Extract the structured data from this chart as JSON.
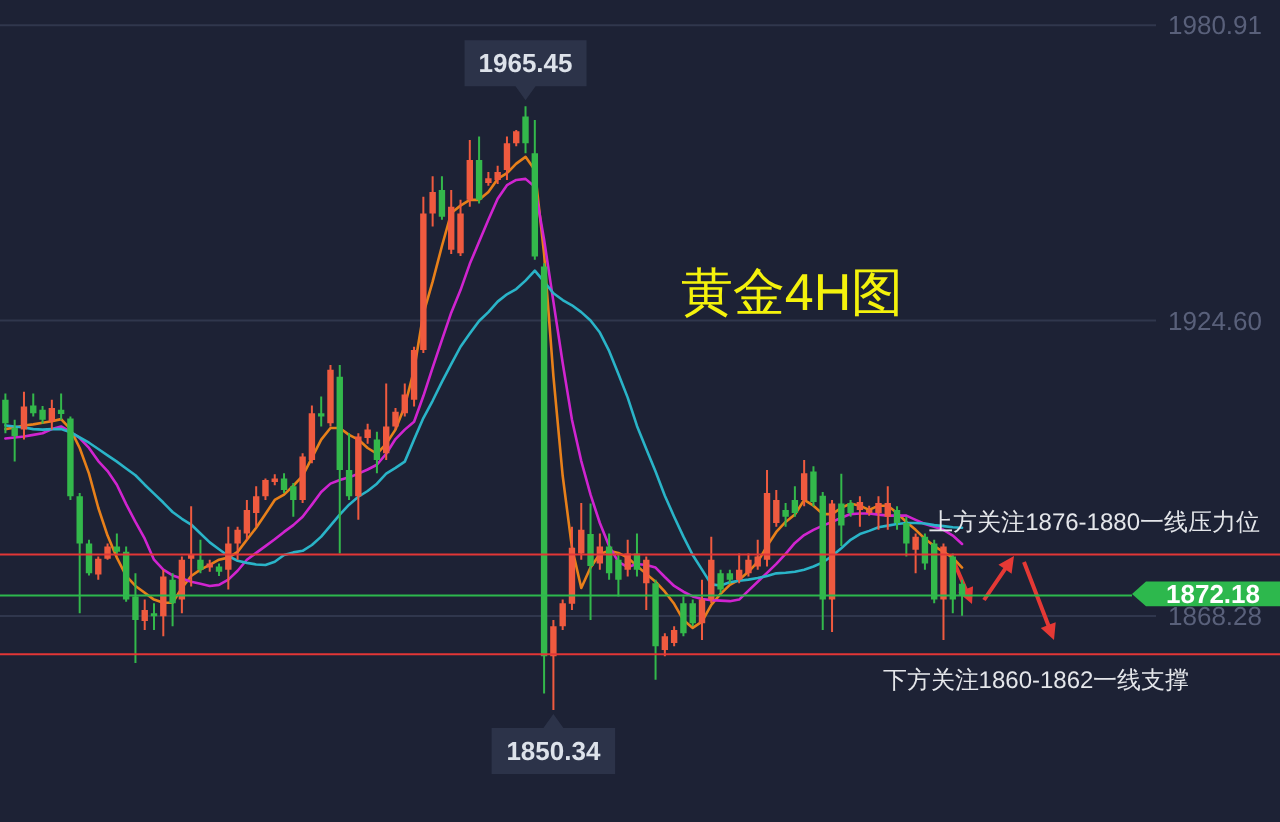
{
  "chart_data": {
    "type": "candlestick",
    "title": "黄金4H图",
    "categories": [
      null,
      null,
      null,
      null,
      null,
      null,
      null,
      null,
      null,
      null,
      null,
      null,
      null,
      null,
      null,
      null,
      null,
      null,
      null,
      null,
      null,
      null,
      null,
      null,
      null,
      null,
      null,
      null,
      null,
      null,
      null,
      null,
      null,
      null,
      null,
      null,
      null,
      null,
      null,
      null,
      null,
      null,
      null,
      null,
      null,
      null,
      null,
      null,
      null,
      null,
      null,
      null,
      null,
      null,
      null,
      null,
      null,
      null,
      null,
      null,
      null,
      null,
      null,
      null,
      null,
      null,
      null,
      null,
      null,
      null,
      null,
      null,
      null,
      null,
      null,
      null,
      null,
      null,
      null,
      null,
      null,
      null,
      null,
      null,
      null,
      null,
      null,
      null,
      null,
      null,
      null,
      null,
      null,
      null,
      null,
      null,
      null,
      null,
      null,
      null,
      null,
      null,
      null,
      null
    ],
    "ohlc": [
      [
        1909.5,
        1910.7,
        1903.1,
        1905.0
      ],
      [
        1904.1,
        1905.7,
        1897.7,
        1902.6
      ],
      [
        1903.8,
        1911.0,
        1901.9,
        1908.2
      ],
      [
        1908.4,
        1910.7,
        1906.3,
        1906.9
      ],
      [
        1907.6,
        1908.3,
        1904.9,
        1905.7
      ],
      [
        1905.4,
        1909.5,
        1903.8,
        1907.9
      ],
      [
        1907.6,
        1910.7,
        1905.7,
        1906.8
      ],
      [
        1905.9,
        1906.3,
        1890.4,
        1891.1
      ],
      [
        1891.1,
        1891.7,
        1868.8,
        1882.1
      ],
      [
        1882.1,
        1882.8,
        1876.0,
        1876.4
      ],
      [
        1876.2,
        1879.6,
        1875.2,
        1879.2
      ],
      [
        1879.2,
        1882.1,
        1879.0,
        1881.5
      ],
      [
        1881.5,
        1884.0,
        1880.1,
        1880.5
      ],
      [
        1880.5,
        1881.5,
        1871.0,
        1871.4
      ],
      [
        1872.0,
        1876.4,
        1859.3,
        1867.5
      ],
      [
        1867.3,
        1871.4,
        1865.6,
        1869.4
      ],
      [
        1868.8,
        1870.7,
        1865.6,
        1868.2
      ],
      [
        1868.2,
        1877.1,
        1864.4,
        1875.8
      ],
      [
        1875.2,
        1876.4,
        1866.3,
        1870.7
      ],
      [
        1871.4,
        1879.6,
        1868.8,
        1879.0
      ],
      [
        1879.2,
        1889.2,
        1873.9,
        1880.0
      ],
      [
        1879.0,
        1882.8,
        1876.4,
        1877.1
      ],
      [
        1877.5,
        1879.0,
        1876.7,
        1878.3
      ],
      [
        1877.7,
        1878.3,
        1875.9,
        1876.7
      ],
      [
        1877.1,
        1885.3,
        1873.3,
        1882.1
      ],
      [
        1882.1,
        1885.3,
        1879.0,
        1884.7
      ],
      [
        1884.0,
        1890.4,
        1882.8,
        1888.5
      ],
      [
        1887.9,
        1893.0,
        1885.3,
        1891.1
      ],
      [
        1891.1,
        1894.5,
        1890.4,
        1894.2
      ],
      [
        1893.8,
        1895.3,
        1893.2,
        1894.5
      ],
      [
        1894.5,
        1895.5,
        1891.7,
        1892.3
      ],
      [
        1893.0,
        1893.6,
        1887.2,
        1890.4
      ],
      [
        1890.4,
        1899.3,
        1889.8,
        1898.7
      ],
      [
        1898.0,
        1908.4,
        1897.4,
        1906.9
      ],
      [
        1906.9,
        1910.1,
        1904.4,
        1906.3
      ],
      [
        1905.0,
        1916.1,
        1904.4,
        1915.2
      ],
      [
        1913.9,
        1916.1,
        1880.2,
        1896.1
      ],
      [
        1896.1,
        1903.1,
        1890.4,
        1891.1
      ],
      [
        1891.1,
        1903.1,
        1886.6,
        1902.5
      ],
      [
        1902.2,
        1904.9,
        1901.1,
        1903.8
      ],
      [
        1901.9,
        1903.4,
        1895.5,
        1898.0
      ],
      [
        1899.3,
        1912.6,
        1898.0,
        1904.4
      ],
      [
        1904.4,
        1907.9,
        1903.8,
        1907.2
      ],
      [
        1906.9,
        1912.6,
        1906.3,
        1910.5
      ],
      [
        1909.5,
        1919.6,
        1908.2,
        1919.0
      ],
      [
        1919.0,
        1948.2,
        1918.4,
        1945.0
      ],
      [
        1945.0,
        1952.1,
        1942.5,
        1949.1
      ],
      [
        1949.5,
        1952.1,
        1943.8,
        1944.4
      ],
      [
        1938.1,
        1949.5,
        1937.3,
        1946.3
      ],
      [
        1937.4,
        1947.6,
        1936.9,
        1945.0
      ],
      [
        1947.6,
        1959.0,
        1946.3,
        1955.2
      ],
      [
        1955.2,
        1959.7,
        1946.9,
        1947.6
      ],
      [
        1950.8,
        1952.9,
        1950.3,
        1951.7
      ],
      [
        1951.4,
        1954.1,
        1950.6,
        1952.9
      ],
      [
        1953.3,
        1959.7,
        1951.4,
        1958.4
      ],
      [
        1958.4,
        1960.9,
        1957.8,
        1960.7
      ],
      [
        1963.5,
        1965.45,
        1956.5,
        1958.4
      ],
      [
        1956.5,
        1962.8,
        1936.2,
        1936.8
      ],
      [
        1934.9,
        1935.5,
        1853.5,
        1860.6
      ],
      [
        1860.6,
        1867.5,
        1850.34,
        1866.3
      ],
      [
        1866.3,
        1871.4,
        1865.6,
        1870.7
      ],
      [
        1870.6,
        1885.3,
        1869.4,
        1881.3
      ],
      [
        1880.2,
        1889.8,
        1879.0,
        1884.7
      ],
      [
        1883.9,
        1889.7,
        1867.5,
        1877.8
      ],
      [
        1878.3,
        1884.0,
        1877.1,
        1881.5
      ],
      [
        1881.5,
        1884.0,
        1875.2,
        1876.4
      ],
      [
        1879.0,
        1880.2,
        1872.0,
        1875.2
      ],
      [
        1877.1,
        1882.8,
        1875.8,
        1880.2
      ],
      [
        1880.2,
        1884.0,
        1875.8,
        1877.1
      ],
      [
        1874.5,
        1879.6,
        1869.4,
        1879.0
      ],
      [
        1874.5,
        1875.2,
        1856.1,
        1862.5
      ],
      [
        1861.8,
        1865.0,
        1860.6,
        1864.4
      ],
      [
        1863.1,
        1866.3,
        1862.5,
        1865.6
      ],
      [
        1870.7,
        1872.0,
        1864.4,
        1865.0
      ],
      [
        1870.7,
        1871.4,
        1866.3,
        1866.9
      ],
      [
        1866.9,
        1875.2,
        1863.7,
        1871.4
      ],
      [
        1871.4,
        1883.4,
        1870.7,
        1879.0
      ],
      [
        1876.4,
        1877.1,
        1872.6,
        1873.3
      ],
      [
        1876.4,
        1877.1,
        1874.5,
        1875.2
      ],
      [
        1875.2,
        1880.2,
        1874.5,
        1877.1
      ],
      [
        1876.4,
        1880.2,
        1875.8,
        1879.0
      ],
      [
        1877.7,
        1882.8,
        1877.1,
        1879.6
      ],
      [
        1879.0,
        1896.1,
        1877.7,
        1891.7
      ],
      [
        1886.0,
        1892.3,
        1885.3,
        1890.4
      ],
      [
        1888.5,
        1889.8,
        1885.3,
        1887.2
      ],
      [
        1890.4,
        1893.0,
        1887.2,
        1887.9
      ],
      [
        1890.4,
        1898.0,
        1889.2,
        1895.5
      ],
      [
        1895.8,
        1896.8,
        1889.2,
        1890.0
      ],
      [
        1891.2,
        1891.9,
        1865.6,
        1871.4
      ],
      [
        1871.4,
        1890.4,
        1865.2,
        1889.7
      ],
      [
        1889.7,
        1895.4,
        1881.6,
        1885.5
      ],
      [
        1889.8,
        1890.4,
        1887.2,
        1887.9
      ],
      [
        1888.5,
        1891.1,
        1885.3,
        1890.0
      ],
      [
        1887.9,
        1889.3,
        1887.4,
        1888.5
      ],
      [
        1887.9,
        1891.1,
        1884.7,
        1889.8
      ],
      [
        1887.2,
        1893.0,
        1884.7,
        1889.8
      ],
      [
        1888.5,
        1889.2,
        1884.7,
        1886.0
      ],
      [
        1886.0,
        1887.2,
        1879.6,
        1882.1
      ],
      [
        1880.9,
        1884.0,
        1876.4,
        1883.4
      ],
      [
        1883.4,
        1884.0,
        1877.1,
        1878.3
      ],
      [
        1882.1,
        1882.8,
        1870.7,
        1871.4
      ],
      [
        1871.4,
        1882.1,
        1863.7,
        1881.5
      ],
      [
        1879.6,
        1880.2,
        1868.8,
        1871.4
      ],
      [
        1874.4,
        1875.2,
        1868.3,
        1872.18
      ]
    ],
    "series": [
      {
        "type": "line",
        "color": "#e8801a",
        "values": [
          1903.9,
          1904.2,
          1904.6,
          1904.8,
          1905.1,
          1905.4,
          1905.8,
          1903.9,
          1900.3,
          1895.4,
          1888.9,
          1883.6,
          1879.4,
          1875.9,
          1874.0,
          1872.7,
          1871.4,
          1870.8,
          1870.8,
          1873.6,
          1875.9,
          1877.1,
          1878.0,
          1879.0,
          1879.4,
          1880.5,
          1882.8,
          1885.1,
          1887.7,
          1890.4,
          1891.4,
          1893.1,
          1895.0,
          1898.4,
          1901.9,
          1904.1,
          1904.1,
          1902.8,
          1901.9,
          1900.3,
          1899.2,
          1901.1,
          1903.8,
          1908.3,
          1915.2,
          1925.9,
          1932.0,
          1938.8,
          1945.1,
          1946.5,
          1947.6,
          1947.6,
          1949.1,
          1951.6,
          1952.7,
          1954.5,
          1955.8,
          1953.3,
          1937.3,
          1914.0,
          1895.0,
          1881.3,
          1873.6,
          1877.5,
          1880.1,
          1880.7,
          1880.3,
          1879.4,
          1877.8,
          1876.3,
          1874.8,
          1872.9,
          1870.6,
          1867.5,
          1866.0,
          1867.2,
          1870.4,
          1872.5,
          1874.2,
          1875.2,
          1876.7,
          1878.6,
          1881.6,
          1884.3,
          1886.2,
          1887.6,
          1890.4,
          1889.3,
          1887.7,
          1887.7,
          1888.9,
          1889.7,
          1889.3,
          1888.5,
          1889.3,
          1889.3,
          1887.9,
          1886.2,
          1884.7,
          1883.0,
          1881.6,
          1880.5,
          1879.4,
          1877.5
        ]
      },
      {
        "type": "line",
        "color": "#d024d0",
        "values": [
          1902.1,
          1902.3,
          1902.5,
          1902.8,
          1903.1,
          1903.9,
          1904.4,
          1903.4,
          1902.2,
          1900.3,
          1897.8,
          1895.9,
          1893.3,
          1889.6,
          1886.2,
          1883.0,
          1879.0,
          1877.1,
          1876.0,
          1875.4,
          1874.8,
          1874.4,
          1874.0,
          1874.2,
          1875.2,
          1876.9,
          1879.0,
          1880.3,
          1881.6,
          1882.9,
          1884.3,
          1885.6,
          1887.2,
          1889.5,
          1891.9,
          1893.5,
          1894.2,
          1894.7,
          1895.4,
          1896.2,
          1897.1,
          1899.2,
          1902.0,
          1903.8,
          1905.3,
          1910.2,
          1915.6,
          1920.9,
          1926.1,
          1930.4,
          1935.4,
          1939.6,
          1943.8,
          1947.8,
          1950.4,
          1951.4,
          1951.6,
          1950.1,
          1940.0,
          1928.2,
          1916.5,
          1905.7,
          1897.8,
          1891.4,
          1886.0,
          1881.6,
          1878.6,
          1877.6,
          1878.2,
          1878.0,
          1877.5,
          1875.7,
          1874.0,
          1872.9,
          1872.0,
          1871.5,
          1871.3,
          1871.2,
          1871.1,
          1871.4,
          1873.1,
          1874.8,
          1876.5,
          1878.2,
          1880.1,
          1882.2,
          1883.7,
          1884.7,
          1885.5,
          1886.2,
          1887.0,
          1887.7,
          1887.8,
          1887.8,
          1887.6,
          1887.4,
          1887.4,
          1887.4,
          1886.6,
          1885.8,
          1885.3,
          1884.7,
          1883.6,
          1882.0
        ]
      },
      {
        "type": "line",
        "color": "#2ab4c8",
        "values": [
          1904.6,
          1904.4,
          1904.2,
          1903.9,
          1903.8,
          1903.9,
          1903.9,
          1903.3,
          1902.3,
          1901.3,
          1900.1,
          1898.9,
          1897.7,
          1896.4,
          1895.1,
          1893.3,
          1891.6,
          1889.9,
          1888.1,
          1886.8,
          1885.7,
          1884.0,
          1882.3,
          1881.0,
          1879.7,
          1878.8,
          1878.4,
          1878.1,
          1878.0,
          1878.6,
          1879.9,
          1880.4,
          1880.7,
          1881.8,
          1883.4,
          1885.5,
          1887.6,
          1889.5,
          1891.0,
          1892.1,
          1893.5,
          1895.4,
          1896.5,
          1897.7,
          1901.9,
          1906.0,
          1909.3,
          1912.9,
          1916.3,
          1919.6,
          1922.1,
          1924.5,
          1926.2,
          1928.2,
          1929.6,
          1930.6,
          1932.2,
          1934.1,
          1932.0,
          1929.8,
          1928.5,
          1927.5,
          1926.2,
          1924.6,
          1922.3,
          1918.8,
          1914.4,
          1909.9,
          1904.5,
          1900.1,
          1895.8,
          1891.2,
          1887.2,
          1883.4,
          1879.9,
          1877.1,
          1874.3,
          1874.1,
          1874.7,
          1875.0,
          1875.2,
          1875.5,
          1875.9,
          1876.4,
          1876.5,
          1876.7,
          1877.1,
          1877.7,
          1878.5,
          1879.7,
          1881.2,
          1882.8,
          1883.9,
          1884.5,
          1885.2,
          1885.5,
          1885.8,
          1886.0,
          1886.0,
          1885.9,
          1885.6,
          1885.4,
          1885.2,
          1885.1
        ]
      }
    ],
    "ylim": [
      1829,
      1985.7
    ],
    "yticks": [
      1980.91,
      {
        "value": 1924.6,
        "label": "1924.60"
      },
      1868.28
    ],
    "tick_labels": "y",
    "grid": "y",
    "ref_lines": [
      {
        "axis": "y",
        "value": 1880,
        "label": "上方关注1876-1880一线压力位",
        "color": "#e23636"
      },
      {
        "axis": "y",
        "value": 1861,
        "label": "下方关注1860-1862一线支撑",
        "color": "#e23636"
      },
      {
        "axis": "y",
        "value": 1872.18,
        "label": "1872.18",
        "color": "#2db84d"
      }
    ],
    "annotations": [
      {
        "text": "1965.45",
        "y": 1965.45
      },
      {
        "text": "1850.34",
        "y": 1850.34
      }
    ]
  }
}
